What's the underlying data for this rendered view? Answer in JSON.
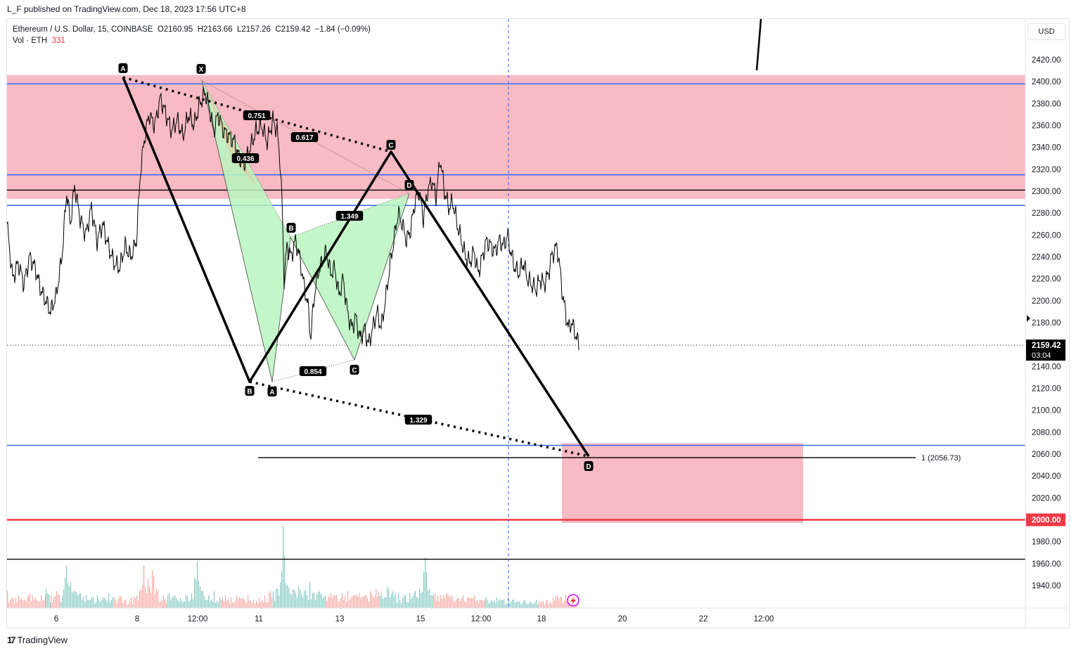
{
  "header": {
    "published_line": "L_F published on TradingView.com, Dec 18, 2023 17:56 UTC+8"
  },
  "legend": {
    "symbol": "Ethereum / U.S. Dollar, 15, COINBASE",
    "open": "O2160.95",
    "high": "H2163.66",
    "low": "L2157.26",
    "close": "C2159.42",
    "change": "−1.84 (−0.09%)",
    "vol_label": "Vol · ETH",
    "vol_value": "331"
  },
  "currency_button": "USD",
  "footer": {
    "brand": "TradingView",
    "logo_text": "17"
  },
  "colors": {
    "zone_fill": "#f8bbc3",
    "blue_line": "#2962ff",
    "red_line": "#f23645",
    "pattern_green": "#b9f6c0",
    "pattern_olive": "#d9d0a6",
    "candle": "#000000",
    "vol_up": "#5fb8ae",
    "vol_down": "#f28b86"
  },
  "chart_data": {
    "type": "line",
    "instrument": "ETH/USD",
    "timeframe": "15",
    "x_tick_labels": [
      "6",
      "8",
      "12:00",
      "11",
      "13",
      "15",
      "12:00",
      "18",
      "20",
      "22",
      "12:00"
    ],
    "y_tick_labels": [
      1940,
      1960,
      1980,
      2000,
      2020,
      2040,
      2060,
      2080,
      2100,
      2120,
      2140,
      2160,
      2180,
      2200,
      2220,
      2240,
      2260,
      2280,
      2300,
      2320,
      2340,
      2360,
      2380,
      2400,
      2420
    ],
    "ylim": [
      1925,
      2445
    ],
    "last_price": {
      "value": 2159.42,
      "label": "2159.42",
      "countdown": "03:04"
    },
    "price_series": [
      [
        0,
        2270
      ],
      [
        8,
        2220
      ],
      [
        16,
        2235
      ],
      [
        24,
        2215
      ],
      [
        32,
        2240
      ],
      [
        40,
        2230
      ],
      [
        48,
        2210
      ],
      [
        55,
        2200
      ],
      [
        62,
        2190
      ],
      [
        70,
        2205
      ],
      [
        78,
        2240
      ],
      [
        85,
        2300
      ],
      [
        90,
        2270
      ],
      [
        96,
        2305
      ],
      [
        104,
        2275
      ],
      [
        112,
        2260
      ],
      [
        120,
        2285
      ],
      [
        128,
        2255
      ],
      [
        136,
        2270
      ],
      [
        144,
        2250
      ],
      [
        152,
        2235
      ],
      [
        160,
        2230
      ],
      [
        168,
        2250
      ],
      [
        176,
        2240
      ],
      [
        184,
        2255
      ],
      [
        190,
        2320
      ],
      [
        196,
        2350
      ],
      [
        202,
        2370
      ],
      [
        210,
        2360
      ],
      [
        218,
        2385
      ],
      [
        226,
        2370
      ],
      [
        234,
        2355
      ],
      [
        242,
        2365
      ],
      [
        250,
        2350
      ],
      [
        258,
        2370
      ],
      [
        266,
        2360
      ],
      [
        274,
        2380
      ],
      [
        282,
        2390
      ],
      [
        288,
        2375
      ],
      [
        294,
        2355
      ],
      [
        300,
        2370
      ],
      [
        308,
        2355
      ],
      [
        316,
        2350
      ],
      [
        324,
        2345
      ],
      [
        330,
        2330
      ],
      [
        338,
        2325
      ],
      [
        346,
        2340
      ],
      [
        354,
        2355
      ],
      [
        362,
        2360
      ],
      [
        370,
        2345
      ],
      [
        378,
        2365
      ],
      [
        384,
        2355
      ],
      [
        388,
        2330
      ],
      [
        391,
        2290
      ],
      [
        394,
        2220
      ],
      [
        398,
        2250
      ],
      [
        404,
        2240
      ],
      [
        410,
        2255
      ],
      [
        416,
        2240
      ],
      [
        422,
        2215
      ],
      [
        428,
        2195
      ],
      [
        432,
        2165
      ],
      [
        436,
        2200
      ],
      [
        442,
        2225
      ],
      [
        448,
        2235
      ],
      [
        454,
        2245
      ],
      [
        460,
        2225
      ],
      [
        466,
        2230
      ],
      [
        472,
        2205
      ],
      [
        478,
        2220
      ],
      [
        484,
        2190
      ],
      [
        490,
        2175
      ],
      [
        496,
        2185
      ],
      [
        502,
        2165
      ],
      [
        508,
        2175
      ],
      [
        514,
        2160
      ],
      [
        520,
        2175
      ],
      [
        526,
        2190
      ],
      [
        532,
        2175
      ],
      [
        538,
        2200
      ],
      [
        544,
        2230
      ],
      [
        550,
        2255
      ],
      [
        556,
        2280
      ],
      [
        562,
        2270
      ],
      [
        568,
        2255
      ],
      [
        574,
        2265
      ],
      [
        580,
        2290
      ],
      [
        586,
        2300
      ],
      [
        592,
        2275
      ],
      [
        598,
        2300
      ],
      [
        604,
        2310
      ],
      [
        610,
        2295
      ],
      [
        616,
        2330
      ],
      [
        622,
        2300
      ],
      [
        628,
        2285
      ],
      [
        634,
        2290
      ],
      [
        640,
        2270
      ],
      [
        646,
        2255
      ],
      [
        652,
        2240
      ],
      [
        658,
        2235
      ],
      [
        664,
        2245
      ],
      [
        670,
        2225
      ],
      [
        676,
        2240
      ],
      [
        682,
        2255
      ],
      [
        688,
        2250
      ],
      [
        694,
        2245
      ],
      [
        700,
        2255
      ],
      [
        706,
        2250
      ],
      [
        712,
        2260
      ],
      [
        716,
        2245
      ],
      [
        722,
        2230
      ],
      [
        728,
        2225
      ],
      [
        734,
        2235
      ],
      [
        740,
        2220
      ],
      [
        746,
        2215
      ],
      [
        752,
        2210
      ],
      [
        758,
        2220
      ],
      [
        764,
        2215
      ],
      [
        770,
        2225
      ],
      [
        774,
        2240
      ],
      [
        778,
        2245
      ],
      [
        782,
        2250
      ],
      [
        786,
        2230
      ],
      [
        790,
        2205
      ],
      [
        794,
        2190
      ],
      [
        798,
        2175
      ],
      [
        802,
        2180
      ],
      [
        806,
        2175
      ],
      [
        810,
        2165
      ],
      [
        814,
        2160
      ]
    ],
    "volume_series": [
      [
        0,
        40
      ],
      [
        8,
        25
      ],
      [
        16,
        30
      ],
      [
        24,
        20
      ],
      [
        32,
        35
      ],
      [
        40,
        25
      ],
      [
        48,
        30
      ],
      [
        55,
        45
      ],
      [
        62,
        30
      ],
      [
        70,
        40
      ],
      [
        78,
        30
      ],
      [
        84,
        100
      ],
      [
        90,
        60
      ],
      [
        96,
        40
      ],
      [
        104,
        35
      ],
      [
        112,
        30
      ],
      [
        120,
        25
      ],
      [
        128,
        30
      ],
      [
        136,
        25
      ],
      [
        144,
        35
      ],
      [
        152,
        25
      ],
      [
        160,
        30
      ],
      [
        168,
        20
      ],
      [
        176,
        25
      ],
      [
        184,
        30
      ],
      [
        194,
        100
      ],
      [
        200,
        70
      ],
      [
        206,
        90
      ],
      [
        214,
        40
      ],
      [
        222,
        30
      ],
      [
        230,
        35
      ],
      [
        238,
        30
      ],
      [
        246,
        25
      ],
      [
        254,
        30
      ],
      [
        262,
        35
      ],
      [
        270,
        110
      ],
      [
        278,
        40
      ],
      [
        286,
        30
      ],
      [
        294,
        40
      ],
      [
        302,
        25
      ],
      [
        310,
        30
      ],
      [
        318,
        25
      ],
      [
        326,
        30
      ],
      [
        334,
        25
      ],
      [
        342,
        30
      ],
      [
        350,
        20
      ],
      [
        358,
        25
      ],
      [
        366,
        30
      ],
      [
        374,
        40
      ],
      [
        382,
        45
      ],
      [
        388,
        60
      ],
      [
        392,
        195
      ],
      [
        398,
        55
      ],
      [
        406,
        45
      ],
      [
        414,
        50
      ],
      [
        422,
        40
      ],
      [
        430,
        60
      ],
      [
        436,
        35
      ],
      [
        444,
        40
      ],
      [
        452,
        30
      ],
      [
        460,
        35
      ],
      [
        468,
        30
      ],
      [
        476,
        35
      ],
      [
        484,
        40
      ],
      [
        492,
        30
      ],
      [
        500,
        35
      ],
      [
        508,
        30
      ],
      [
        516,
        40
      ],
      [
        524,
        45
      ],
      [
        532,
        35
      ],
      [
        540,
        50
      ],
      [
        548,
        40
      ],
      [
        556,
        35
      ],
      [
        564,
        30
      ],
      [
        572,
        35
      ],
      [
        580,
        40
      ],
      [
        586,
        45
      ],
      [
        594,
        120
      ],
      [
        600,
        45
      ],
      [
        608,
        35
      ],
      [
        616,
        30
      ],
      [
        624,
        35
      ],
      [
        632,
        30
      ],
      [
        640,
        25
      ],
      [
        648,
        30
      ],
      [
        656,
        25
      ],
      [
        664,
        30
      ],
      [
        672,
        20
      ],
      [
        680,
        25
      ],
      [
        688,
        20
      ],
      [
        696,
        25
      ],
      [
        704,
        20
      ],
      [
        712,
        25
      ],
      [
        720,
        20
      ],
      [
        728,
        15
      ],
      [
        736,
        20
      ],
      [
        744,
        15
      ],
      [
        752,
        20
      ],
      [
        760,
        15
      ],
      [
        768,
        20
      ],
      [
        776,
        25
      ],
      [
        782,
        30
      ],
      [
        788,
        25
      ],
      [
        794,
        30
      ],
      [
        800,
        20
      ],
      [
        806,
        25
      ],
      [
        812,
        20
      ]
    ],
    "horizontal_levels": [
      {
        "price": 2398,
        "color": "blue"
      },
      {
        "price": 2315,
        "color": "blue"
      },
      {
        "price": 2301,
        "color": "black"
      },
      {
        "price": 2287,
        "color": "blue"
      },
      {
        "price": 2068,
        "color": "blue"
      },
      {
        "price": 2000,
        "color": "red",
        "label": "2000.00"
      },
      {
        "price": 1964,
        "color": "black"
      }
    ],
    "zones": [
      {
        "from": 2293,
        "to": 2406
      },
      {
        "from": 1997,
        "to": 2070
      }
    ],
    "fib_level": {
      "price": 2056.73,
      "label": "1 (2056.73)"
    },
    "big_pattern_points": [
      {
        "label": "A",
        "x": 175,
        "price": 2404
      },
      {
        "label": "B",
        "x": 355,
        "price": 2126
      },
      {
        "label": "C",
        "x": 556,
        "price": 2336
      },
      {
        "label": "D",
        "x": 837,
        "price": 2058
      }
    ],
    "small_pattern_points": [
      {
        "label": "X",
        "x": 287,
        "price": 2401
      },
      {
        "label": "A",
        "x": 387,
        "price": 2126
      },
      {
        "label": "B",
        "x": 413,
        "price": 2258
      },
      {
        "label": "C",
        "x": 504,
        "price": 2146
      },
      {
        "label": "D",
        "x": 582,
        "price": 2298
      }
    ],
    "ratio_labels": [
      "0.751",
      "0.617",
      "0.436",
      "1.349",
      "0.854",
      "1.329"
    ]
  }
}
